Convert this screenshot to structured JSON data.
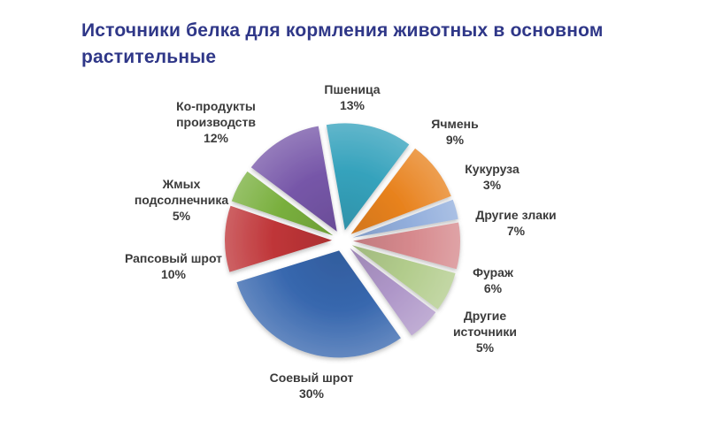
{
  "title": {
    "text": "Источники белка для кормления животных в основном растительные"
  },
  "chart_data": {
    "type": "pie",
    "title": "Источники белка для кормления животных в основном растительные",
    "title_color": "#2F3788",
    "legend": "none",
    "label_position": "outside",
    "start_angle_deg": -10,
    "exploded": true,
    "slices": [
      {
        "label": "Пшеница",
        "value": 13,
        "pct_label": "13%",
        "color": "#35A2BC"
      },
      {
        "label": "Ячмень",
        "value": 9,
        "pct_label": "9%",
        "color": "#E8821E"
      },
      {
        "label": "Кукуруза",
        "value": 3,
        "pct_label": "3%",
        "color": "#92AEDC"
      },
      {
        "label": "Другие злаки",
        "value": 7,
        "pct_label": "7%",
        "color": "#D6898D"
      },
      {
        "label": "Фураж",
        "value": 6,
        "pct_label": "6%",
        "color": "#B2CC8C"
      },
      {
        "label": "Другие источники",
        "value": 5,
        "pct_label": "5%",
        "color": "#AE96C8"
      },
      {
        "label": "Соевый шрот",
        "value": 30,
        "pct_label": "30%",
        "color": "#3767AE"
      },
      {
        "label": "Рапсовый шрот",
        "value": 10,
        "pct_label": "10%",
        "color": "#BF3538"
      },
      {
        "label": "Жмых подсолнечника",
        "value": 5,
        "pct_label": "5%",
        "color": "#79AF3D"
      },
      {
        "label": "Ко-продукты производств",
        "value": 12,
        "pct_label": "12%",
        "color": "#7656A8"
      }
    ]
  }
}
